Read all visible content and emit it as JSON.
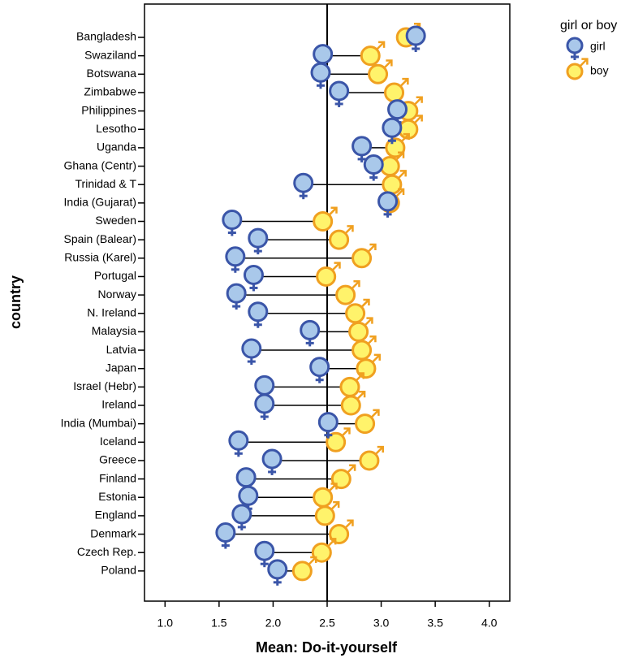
{
  "chart_data": {
    "type": "dotplot",
    "x_label": "Mean: Do-it-yourself",
    "y_label": "country",
    "legend_title": "girl or boy",
    "categories": [
      "Bangladesh",
      "Swaziland",
      "Botswana",
      "Zimbabwe",
      "Philippines",
      "Lesotho",
      "Uganda",
      "Ghana (Centr)",
      "Trinidad & T",
      "India (Gujarat)",
      "Sweden",
      "Spain (Balear)",
      "Russia (Karel)",
      "Portugal",
      "Norway",
      "N. Ireland",
      "Malaysia",
      "Latvia",
      "Japan",
      "Israel (Hebr)",
      "Ireland",
      "India (Mumbai)",
      "Iceland",
      "Greece",
      "Finland",
      "Estonia",
      "England",
      "Denmark",
      "Czech Rep.",
      "Poland"
    ],
    "series": [
      {
        "name": "girl",
        "color": "#a9c8ea",
        "edge": "#3a55a8",
        "values": [
          3.32,
          2.46,
          2.44,
          2.61,
          3.15,
          3.1,
          2.82,
          2.93,
          2.28,
          3.06,
          1.62,
          1.86,
          1.65,
          1.82,
          1.66,
          1.86,
          2.34,
          1.8,
          2.43,
          1.92,
          1.92,
          2.51,
          1.68,
          1.99,
          1.75,
          1.77,
          1.71,
          1.56,
          1.92,
          2.04
        ]
      },
      {
        "name": "boy",
        "color": "#fff36b",
        "edge": "#f0a020",
        "values": [
          3.23,
          2.9,
          2.97,
          3.12,
          3.25,
          3.25,
          3.13,
          3.08,
          3.1,
          3.08,
          2.46,
          2.61,
          2.82,
          2.49,
          2.67,
          2.76,
          2.79,
          2.82,
          2.86,
          2.71,
          2.72,
          2.85,
          2.58,
          2.89,
          2.63,
          2.46,
          2.48,
          2.61,
          2.45,
          2.27
        ]
      }
    ],
    "reference_line": 2.5,
    "xlim": [
      0.81,
      4.19
    ],
    "xticks": [
      {
        "value": 1,
        "label": "1.0"
      },
      1.5,
      {
        "value": 2,
        "label": "2.0"
      },
      2.5,
      {
        "value": 3,
        "label": "3.0"
      },
      3.5,
      {
        "value": 4,
        "label": "4.0"
      }
    ]
  }
}
